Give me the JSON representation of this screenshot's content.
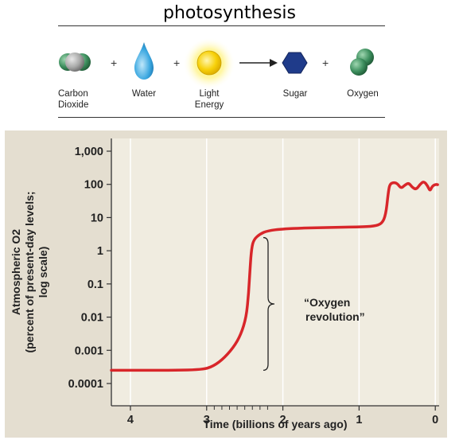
{
  "title": "photosynthesis",
  "equation": {
    "items": [
      {
        "label_line1": "Carbon",
        "label_line2": "Dioxide",
        "icon": "carbon-dioxide-molecule-icon"
      },
      {
        "label_line1": "Water",
        "label_line2": "",
        "icon": "water-drop-icon"
      },
      {
        "label_line1": "Light",
        "label_line2": "Energy",
        "icon": "sun-icon"
      },
      {
        "label_line1": "Sugar",
        "label_line2": "",
        "icon": "sugar-hexagon-icon"
      },
      {
        "label_line1": "Oxygen",
        "label_line2": "",
        "icon": "oxygen-molecule-icon"
      }
    ],
    "plus": "+",
    "colors": {
      "co2_green": "#3d8f5e",
      "co2_gray": "#a9aaa9",
      "water_blue": "#3aa7e0",
      "sun_yellow": "#f7d10a",
      "sugar_blue": "#1f3b8a",
      "oxygen_green": "#3d8f5e"
    }
  },
  "chart_data": {
    "type": "line",
    "title": "",
    "xlabel": "Time (billions of years ago)",
    "ylabel_lines": [
      "Atmospheric O2",
      "(percent of present-day levels;",
      "log scale)"
    ],
    "x_ticks": [
      "4",
      "3",
      "2",
      "1",
      "0"
    ],
    "y_ticks": [
      "1,000",
      "100",
      "10",
      "1",
      "0.1",
      "0.01",
      "0.001",
      "0.0001"
    ],
    "x_range": [
      4.25,
      -0.05
    ],
    "y_log_range": [
      0.0001,
      1000
    ],
    "annotation": [
      "“Oxygen",
      "revolution”"
    ],
    "series": [
      {
        "color": "#d8262a",
        "points": [
          [
            4.25,
            0.00025
          ],
          [
            3.8,
            0.00025
          ],
          [
            3.4,
            0.00025
          ],
          [
            3.1,
            0.00026
          ],
          [
            2.95,
            0.0003
          ],
          [
            2.8,
            0.0005
          ],
          [
            2.65,
            0.0012
          ],
          [
            2.55,
            0.003
          ],
          [
            2.48,
            0.01
          ],
          [
            2.45,
            0.05
          ],
          [
            2.43,
            0.3
          ],
          [
            2.41,
            1.2
          ],
          [
            2.38,
            2.2
          ],
          [
            2.3,
            3.2
          ],
          [
            2.2,
            4.0
          ],
          [
            2.0,
            4.6
          ],
          [
            1.5,
            5.0
          ],
          [
            1.0,
            5.2
          ],
          [
            0.8,
            5.5
          ],
          [
            0.7,
            6.5
          ],
          [
            0.65,
            12
          ],
          [
            0.62,
            50
          ],
          [
            0.6,
            100
          ],
          [
            0.55,
            115
          ],
          [
            0.5,
            108
          ],
          [
            0.45,
            75
          ],
          [
            0.4,
            95
          ],
          [
            0.35,
            112
          ],
          [
            0.3,
            80
          ],
          [
            0.25,
            70
          ],
          [
            0.2,
            100
          ],
          [
            0.15,
            125
          ],
          [
            0.1,
            90
          ],
          [
            0.07,
            62
          ],
          [
            0.04,
            88
          ],
          [
            0.0,
            100
          ],
          [
            -0.03,
            98
          ]
        ]
      }
    ],
    "revolution_bracket_range": [
      0.00025,
      2.5
    ],
    "colors": {
      "plot_bg": "#f0ece0",
      "outer_bg": "#e4ded0",
      "grid": "#ffffff"
    }
  }
}
